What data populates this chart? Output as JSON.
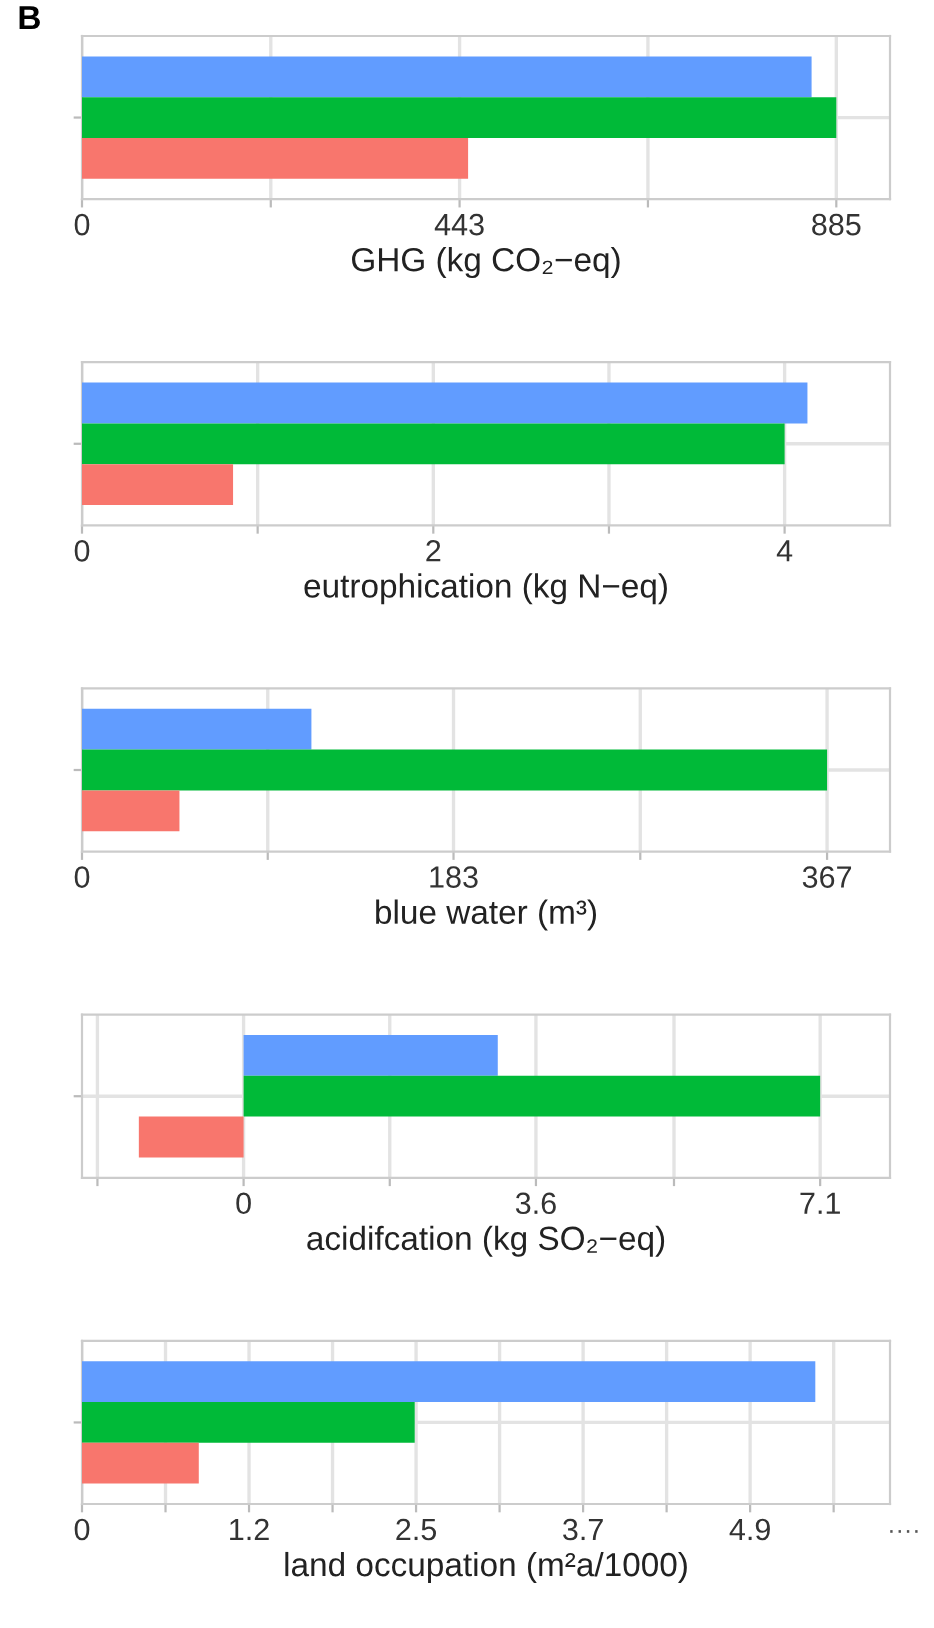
{
  "chart_data": [
    {
      "type": "bar",
      "orientation": "horizontal",
      "title": "B",
      "xlabel": "GHG (kg CO₂−eq)",
      "categories": [
        null
      ],
      "grid": true,
      "series": [
        {
          "color": "#619cff",
          "values": [
            856
          ]
        },
        {
          "color": "#00ba38",
          "values": [
            885
          ]
        },
        {
          "color": "#f8766d",
          "values": [
            453
          ]
        }
      ],
      "xlim": [
        0,
        948
      ],
      "xticks": [
        0,
        {
          "value": 221.5,
          "label": null
        },
        443,
        {
          "value": 664,
          "label": null
        },
        885
      ]
    },
    {
      "type": "bar",
      "orientation": "horizontal",
      "xlabel": "eutrophication (kg N−eq)",
      "categories": [
        null
      ],
      "grid": true,
      "series": [
        {
          "color": "#619cff",
          "values": [
            4.13
          ]
        },
        {
          "color": "#00ba38",
          "values": [
            4.0
          ]
        },
        {
          "color": "#f8766d",
          "values": [
            0.86
          ]
        }
      ],
      "xlim": [
        0,
        4.6
      ],
      "xticks": [
        0,
        {
          "value": 1,
          "label": null
        },
        2,
        {
          "value": 3,
          "label": null
        },
        4
      ]
    },
    {
      "type": "bar",
      "orientation": "horizontal",
      "xlabel": "blue water (m³)",
      "categories": [
        null
      ],
      "grid": true,
      "series": [
        {
          "color": "#619cff",
          "values": [
            113
          ]
        },
        {
          "color": "#00ba38",
          "values": [
            367
          ]
        },
        {
          "color": "#f8766d",
          "values": [
            48
          ]
        }
      ],
      "xlim": [
        0,
        398
      ],
      "xticks": [
        0,
        {
          "value": 91.5,
          "label": null
        },
        183,
        {
          "value": 275,
          "label": null
        },
        367
      ]
    },
    {
      "type": "bar",
      "orientation": "horizontal",
      "xlabel": "acidifcation (kg SO₂−eq)",
      "categories": [
        null
      ],
      "grid": true,
      "series": [
        {
          "color": "#619cff",
          "values": [
            3.13
          ]
        },
        {
          "color": "#00ba38",
          "values": [
            7.1
          ]
        },
        {
          "color": "#f8766d",
          "values": [
            -1.29
          ]
        }
      ],
      "xlim": [
        -1.99,
        7.96
      ],
      "xticks": [
        {
          "value": -1.8,
          "label": null
        },
        0,
        {
          "value": 1.8,
          "label": null
        },
        3.6,
        {
          "value": 5.3,
          "label": null
        },
        7.1
      ]
    },
    {
      "type": "bar",
      "orientation": "horizontal",
      "xlabel": "land occupation (m²a/1000)",
      "categories": [
        null
      ],
      "grid": true,
      "series": [
        {
          "color": "#619cff",
          "values": [
            5.4
          ]
        },
        {
          "color": "#00ba38",
          "values": [
            2.45
          ]
        },
        {
          "color": "#f8766d",
          "values": [
            0.86
          ]
        }
      ],
      "xlim": [
        0,
        5.95
      ],
      "xticks": [
        0,
        {
          "value": 0.615,
          "label": null
        },
        {
          "value": 1.23,
          "label": "1.2"
        },
        {
          "value": 1.845,
          "label": null
        },
        {
          "value": 2.46,
          "label": "2.5"
        },
        {
          "value": 3.075,
          "label": null
        },
        {
          "value": 3.69,
          "label": "3.7"
        },
        {
          "value": 4.305,
          "label": null
        },
        {
          "value": 4.92,
          "label": "4.9"
        },
        {
          "value": 5.535,
          "label": null
        }
      ],
      "annotations": [
        "····"
      ]
    }
  ]
}
